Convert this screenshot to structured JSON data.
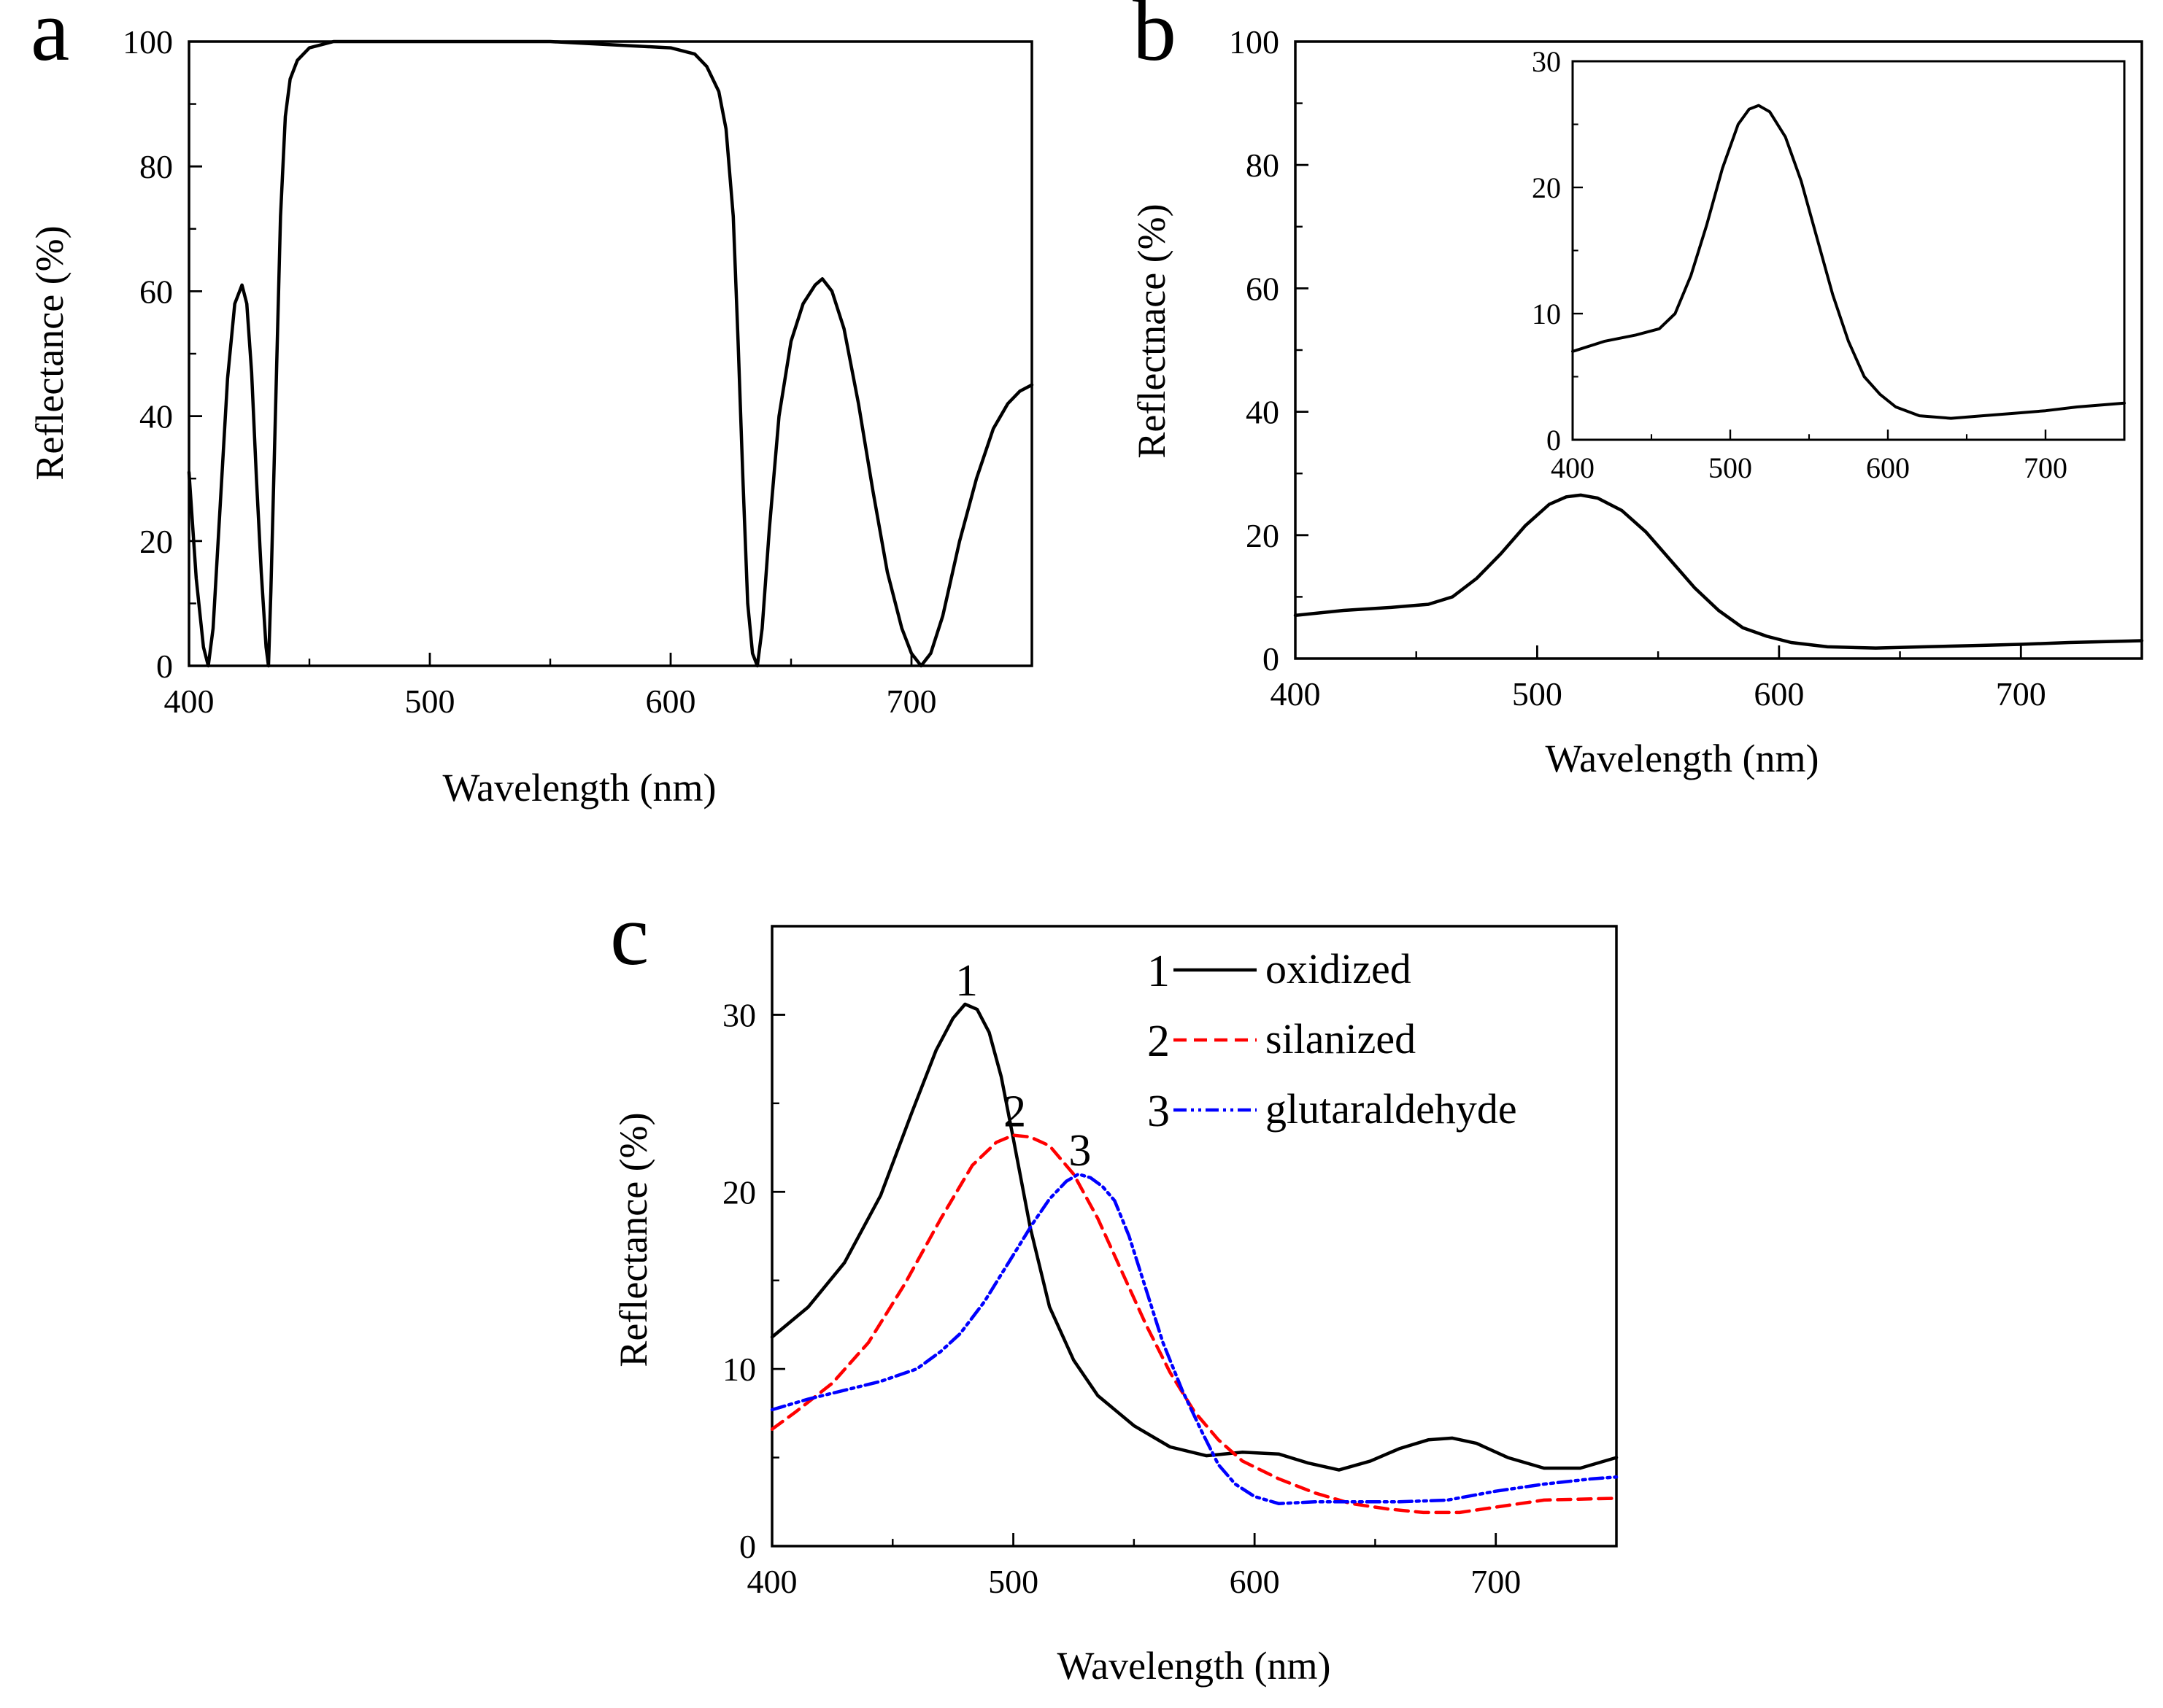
{
  "chart_data": [
    {
      "panel": "a",
      "type": "line",
      "xlabel": "Wavelength (nm)",
      "ylabel": "Reflectance (%)",
      "xlim": [
        400,
        750
      ],
      "ylim": [
        0,
        100
      ],
      "xticks": [
        400,
        500,
        600,
        700
      ],
      "yticks": [
        0,
        20,
        40,
        60,
        80,
        100
      ],
      "series": [
        {
          "color": "#000000",
          "dash": "solid",
          "x": [
            400,
            403,
            406,
            408,
            410,
            413,
            416,
            419,
            422,
            424,
            426,
            428,
            430,
            432,
            433,
            434,
            436,
            438,
            440,
            442,
            445,
            450,
            460,
            480,
            500,
            550,
            600,
            610,
            615,
            620,
            623,
            626,
            628,
            630,
            632,
            634,
            636,
            638,
            641,
            645,
            650,
            655,
            660,
            663,
            667,
            672,
            678,
            684,
            690,
            696,
            700,
            704,
            708,
            713,
            720,
            727,
            734,
            740,
            745,
            750
          ],
          "y": [
            31,
            14,
            3,
            0,
            6,
            26,
            46,
            58,
            61,
            58,
            47,
            30,
            15,
            3,
            0,
            12,
            42,
            72,
            88,
            94,
            97,
            99,
            100,
            100,
            100,
            100,
            99,
            98,
            96,
            92,
            86,
            72,
            52,
            30,
            10,
            2,
            0,
            6,
            22,
            40,
            52,
            58,
            61,
            62,
            60,
            54,
            42,
            28,
            15,
            6,
            2,
            0,
            2,
            8,
            20,
            30,
            38,
            42,
            44,
            45
          ]
        }
      ]
    },
    {
      "panel": "b",
      "type": "line",
      "xlabel": "Wavelength (nm)",
      "ylabel": "Reflectnace (%)",
      "xlim": [
        400,
        750
      ],
      "ylim": [
        0,
        100
      ],
      "xticks": [
        400,
        500,
        600,
        700
      ],
      "yticks": [
        0,
        20,
        40,
        60,
        80,
        100
      ],
      "series": [
        {
          "color": "#000000",
          "dash": "solid",
          "x": [
            400,
            420,
            440,
            455,
            465,
            475,
            485,
            495,
            505,
            512,
            518,
            525,
            535,
            545,
            555,
            565,
            575,
            585,
            595,
            605,
            620,
            640,
            660,
            680,
            700,
            720,
            750
          ],
          "y": [
            7,
            7.8,
            8.3,
            8.8,
            10,
            13,
            17,
            21.5,
            25,
            26.2,
            26.5,
            26,
            24,
            20.5,
            16,
            11.5,
            7.8,
            5,
            3.6,
            2.6,
            1.9,
            1.7,
            1.9,
            2.1,
            2.3,
            2.6,
            2.9
          ]
        }
      ],
      "inset": {
        "xlim": [
          400,
          750
        ],
        "ylim": [
          0,
          30
        ],
        "xticks": [
          400,
          500,
          600,
          700
        ],
        "yticks": [
          0,
          10,
          20,
          30
        ],
        "series": [
          {
            "color": "#000000",
            "dash": "solid",
            "x": [
              400,
              420,
              440,
              455,
              465,
              475,
              485,
              495,
              505,
              512,
              518,
              525,
              535,
              545,
              555,
              565,
              575,
              585,
              595,
              605,
              620,
              640,
              660,
              680,
              700,
              720,
              750
            ],
            "y": [
              7,
              7.8,
              8.3,
              8.8,
              10,
              13,
              17,
              21.5,
              25,
              26.2,
              26.5,
              26,
              24,
              20.5,
              16,
              11.5,
              7.8,
              5,
              3.6,
              2.6,
              1.9,
              1.7,
              1.9,
              2.1,
              2.3,
              2.6,
              2.9
            ]
          }
        ]
      }
    },
    {
      "panel": "c",
      "type": "line",
      "xlabel": "Wavelength (nm)",
      "ylabel": "Reflectance (%)",
      "xlim": [
        400,
        750
      ],
      "ylim": [
        0,
        35
      ],
      "xticks": [
        400,
        500,
        600,
        700
      ],
      "yticks": [
        0,
        10,
        20,
        30
      ],
      "legend_position": "top-right",
      "series": [
        {
          "name": "oxidized",
          "label": "1",
          "color": "#000000",
          "dash": "solid",
          "x": [
            400,
            415,
            430,
            445,
            458,
            468,
            475,
            480,
            485,
            490,
            495,
            500,
            507,
            515,
            525,
            535,
            550,
            565,
            580,
            595,
            610,
            622,
            635,
            648,
            660,
            672,
            682,
            692,
            705,
            720,
            735,
            750
          ],
          "y": [
            11.8,
            13.5,
            16,
            19.8,
            24.5,
            28,
            29.8,
            30.6,
            30.3,
            29,
            26.5,
            23,
            18,
            13.5,
            10.5,
            8.5,
            6.8,
            5.6,
            5.1,
            5.3,
            5.2,
            4.7,
            4.3,
            4.8,
            5.5,
            6.0,
            6.1,
            5.8,
            5.0,
            4.4,
            4.4,
            5.0
          ]
        },
        {
          "name": "silanized",
          "label": "2",
          "color": "#ff0000",
          "dash": "dashed",
          "x": [
            400,
            410,
            425,
            440,
            455,
            470,
            483,
            493,
            500,
            507,
            515,
            525,
            535,
            545,
            555,
            565,
            575,
            585,
            595,
            610,
            625,
            640,
            655,
            670,
            685,
            700,
            720,
            750
          ],
          "y": [
            6.6,
            7.6,
            9.2,
            11.5,
            14.8,
            18.5,
            21.5,
            22.8,
            23.2,
            23.1,
            22.6,
            21,
            18.5,
            15.5,
            12.5,
            9.8,
            7.6,
            6,
            4.8,
            3.8,
            3.0,
            2.4,
            2.1,
            1.9,
            1.9,
            2.2,
            2.6,
            2.7
          ]
        },
        {
          "name": "glutaraldehyde",
          "label": "3",
          "color": "#0000ff",
          "dash": "dash-dot-dot",
          "x": [
            400,
            415,
            430,
            445,
            460,
            470,
            478,
            488,
            498,
            508,
            515,
            522,
            527,
            532,
            537,
            542,
            548,
            555,
            562,
            570,
            578,
            585,
            592,
            600,
            610,
            625,
            640,
            660,
            680,
            700,
            720,
            740,
            750
          ],
          "y": [
            7.7,
            8.3,
            8.8,
            9.3,
            10.0,
            11.0,
            12.0,
            13.8,
            16.0,
            18.2,
            19.6,
            20.6,
            21.0,
            20.8,
            20.3,
            19.5,
            17.5,
            14.5,
            11.5,
            8.8,
            6.5,
            4.6,
            3.5,
            2.8,
            2.4,
            2.5,
            2.5,
            2.5,
            2.6,
            3.1,
            3.5,
            3.8,
            3.9
          ]
        }
      ]
    }
  ]
}
